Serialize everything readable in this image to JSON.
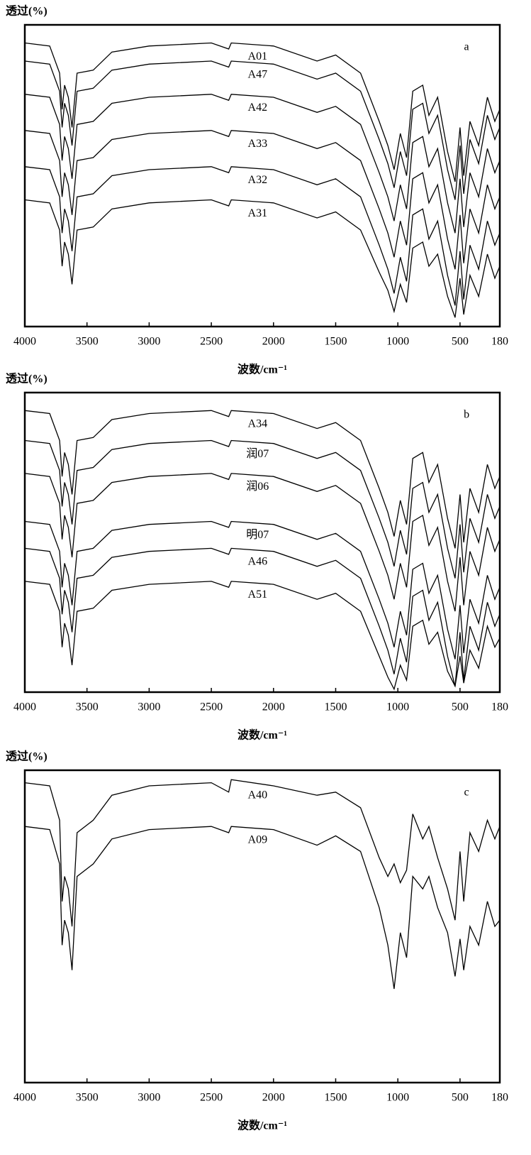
{
  "chart_data": [
    {
      "type": "line",
      "panel_label": "a",
      "y_label": "透过(%)",
      "x_label": "波数/cm⁻¹",
      "xlim": [
        4000,
        180
      ],
      "ylim": [
        0,
        100
      ],
      "xticks": [
        4000,
        3500,
        3000,
        2500,
        2000,
        1500,
        1000,
        500,
        180
      ],
      "x": [
        4000,
        3800,
        3720,
        3700,
        3680,
        3650,
        3620,
        3580,
        3450,
        3300,
        3000,
        2500,
        2360,
        2340,
        2000,
        1650,
        1500,
        1300,
        1150,
        1080,
        1030,
        980,
        930,
        880,
        800,
        750,
        680,
        600,
        540,
        500,
        470,
        420,
        350,
        280,
        220,
        180
      ],
      "series": [
        {
          "name": "A01",
          "color": "#000000",
          "values": [
            94,
            93,
            84,
            72,
            80,
            76,
            66,
            84,
            85,
            91,
            93,
            94,
            92,
            94,
            93,
            88,
            90,
            84,
            68,
            60,
            52,
            64,
            56,
            78,
            80,
            70,
            76,
            58,
            48,
            66,
            50,
            68,
            60,
            76,
            68,
            72
          ]
        },
        {
          "name": "A47",
          "color": "#000000",
          "values": [
            88,
            87,
            78,
            66,
            74,
            70,
            60,
            78,
            79,
            85,
            87,
            88,
            86,
            88,
            87,
            82,
            84,
            78,
            62,
            54,
            46,
            58,
            50,
            72,
            74,
            64,
            70,
            52,
            42,
            60,
            44,
            62,
            54,
            70,
            62,
            66
          ]
        },
        {
          "name": "A42",
          "color": "#000000",
          "values": [
            77,
            76,
            67,
            55,
            63,
            59,
            49,
            67,
            68,
            74,
            76,
            77,
            75,
            77,
            76,
            71,
            73,
            67,
            51,
            43,
            35,
            47,
            39,
            61,
            63,
            53,
            59,
            41,
            31,
            49,
            33,
            51,
            43,
            59,
            51,
            55
          ]
        },
        {
          "name": "A33",
          "color": "#000000",
          "values": [
            65,
            64,
            55,
            43,
            51,
            47,
            37,
            55,
            56,
            62,
            64,
            65,
            63,
            65,
            64,
            59,
            61,
            55,
            39,
            31,
            23,
            35,
            27,
            49,
            51,
            41,
            47,
            29,
            19,
            37,
            21,
            39,
            31,
            47,
            39,
            43
          ]
        },
        {
          "name": "A32",
          "color": "#000000",
          "values": [
            53,
            52,
            43,
            31,
            39,
            35,
            25,
            43,
            44,
            50,
            52,
            53,
            51,
            53,
            52,
            47,
            49,
            43,
            27,
            19,
            11,
            23,
            15,
            37,
            39,
            29,
            35,
            17,
            7,
            25,
            9,
            27,
            19,
            35,
            27,
            31
          ]
        },
        {
          "name": "A31",
          "color": "#000000",
          "values": [
            42,
            41,
            32,
            20,
            28,
            24,
            14,
            32,
            33,
            39,
            41,
            42,
            40,
            42,
            41,
            36,
            38,
            32,
            18,
            12,
            5,
            14,
            8,
            26,
            28,
            20,
            24,
            10,
            3,
            16,
            4,
            17,
            10,
            24,
            16,
            20
          ]
        }
      ]
    },
    {
      "type": "line",
      "panel_label": "b",
      "y_label": "透过(%)",
      "x_label": "波数/cm⁻¹",
      "xlim": [
        4000,
        180
      ],
      "ylim": [
        0,
        100
      ],
      "xticks": [
        4000,
        3500,
        3000,
        2500,
        2000,
        1500,
        1000,
        500,
        180
      ],
      "x": [
        4000,
        3800,
        3720,
        3700,
        3680,
        3650,
        3620,
        3580,
        3450,
        3300,
        3000,
        2500,
        2360,
        2340,
        2000,
        1650,
        1500,
        1300,
        1150,
        1080,
        1030,
        980,
        930,
        880,
        800,
        750,
        680,
        600,
        540,
        500,
        470,
        420,
        350,
        280,
        220,
        180
      ],
      "series": [
        {
          "name": "A34",
          "color": "#000000",
          "values": [
            94,
            93,
            84,
            72,
            80,
            76,
            66,
            84,
            85,
            91,
            93,
            94,
            92,
            94,
            93,
            88,
            90,
            84,
            68,
            60,
            52,
            64,
            56,
            78,
            80,
            70,
            76,
            58,
            48,
            66,
            50,
            68,
            60,
            76,
            68,
            72
          ]
        },
        {
          "name": "润07",
          "color": "#000000",
          "values": [
            84,
            83,
            74,
            62,
            70,
            66,
            56,
            74,
            75,
            81,
            83,
            84,
            82,
            84,
            83,
            78,
            80,
            74,
            58,
            50,
            42,
            54,
            46,
            68,
            70,
            60,
            66,
            48,
            38,
            56,
            40,
            58,
            50,
            66,
            58,
            62
          ]
        },
        {
          "name": "润06",
          "color": "#000000",
          "values": [
            73,
            72,
            63,
            51,
            59,
            55,
            45,
            63,
            64,
            70,
            72,
            73,
            71,
            73,
            72,
            67,
            69,
            63,
            47,
            39,
            31,
            43,
            35,
            57,
            59,
            49,
            55,
            37,
            27,
            45,
            29,
            47,
            39,
            55,
            47,
            51
          ]
        },
        {
          "name": "明07",
          "color": "#000000",
          "values": [
            57,
            56,
            47,
            35,
            43,
            39,
            29,
            47,
            48,
            54,
            56,
            57,
            55,
            57,
            56,
            51,
            53,
            47,
            31,
            23,
            15,
            27,
            19,
            41,
            43,
            33,
            39,
            21,
            11,
            29,
            13,
            31,
            23,
            39,
            31,
            35
          ]
        },
        {
          "name": "A46",
          "color": "#000000",
          "values": [
            48,
            47,
            38,
            26,
            34,
            30,
            20,
            38,
            39,
            45,
            47,
            48,
            46,
            48,
            47,
            42,
            44,
            38,
            22,
            14,
            6,
            18,
            10,
            32,
            34,
            24,
            30,
            12,
            2,
            20,
            4,
            22,
            14,
            30,
            22,
            26
          ]
        },
        {
          "name": "A51",
          "color": "#000000",
          "values": [
            37,
            36,
            27,
            15,
            23,
            19,
            9,
            27,
            28,
            34,
            36,
            37,
            35,
            37,
            36,
            31,
            33,
            27,
            12,
            5,
            1,
            9,
            4,
            22,
            24,
            16,
            20,
            7,
            2,
            12,
            3,
            14,
            8,
            22,
            15,
            18
          ]
        }
      ]
    },
    {
      "type": "line",
      "panel_label": "c",
      "y_label": "透过(%)",
      "x_label": "波数/cm⁻¹",
      "xlim": [
        4000,
        180
      ],
      "ylim": [
        0,
        100
      ],
      "xticks": [
        4000,
        3500,
        3000,
        2500,
        2000,
        1500,
        1000,
        500,
        180
      ],
      "x": [
        4000,
        3800,
        3720,
        3700,
        3680,
        3650,
        3620,
        3580,
        3450,
        3300,
        3000,
        2500,
        2360,
        2340,
        2000,
        1650,
        1500,
        1300,
        1150,
        1080,
        1030,
        980,
        930,
        880,
        800,
        750,
        680,
        600,
        540,
        500,
        470,
        420,
        350,
        280,
        220,
        180
      ],
      "series": [
        {
          "name": "A40",
          "color": "#000000",
          "values": [
            96,
            95,
            84,
            58,
            66,
            62,
            50,
            80,
            84,
            92,
            95,
            96,
            93,
            97,
            95,
            92,
            93,
            88,
            72,
            66,
            70,
            64,
            68,
            86,
            78,
            82,
            72,
            62,
            52,
            74,
            58,
            80,
            74,
            84,
            78,
            82
          ]
        },
        {
          "name": "A09",
          "color": "#000000",
          "values": [
            82,
            81,
            70,
            44,
            52,
            48,
            36,
            66,
            70,
            78,
            81,
            82,
            80,
            82,
            81,
            76,
            79,
            74,
            56,
            44,
            30,
            48,
            40,
            66,
            62,
            66,
            56,
            48,
            34,
            46,
            36,
            50,
            44,
            58,
            50,
            52
          ]
        }
      ]
    }
  ]
}
